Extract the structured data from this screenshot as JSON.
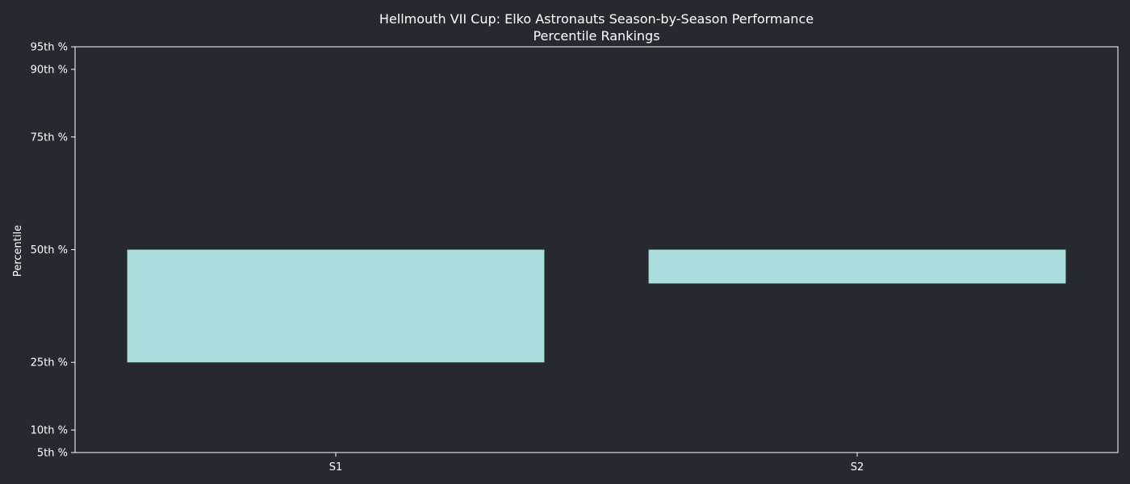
{
  "chart_data": {
    "type": "bar",
    "title": "Hellmouth VII Cup: Elko Astronauts Season-by-Season Performance",
    "subtitle": "Percentile Rankings",
    "xlabel": "",
    "ylabel": "Percentile",
    "ylim": [
      5,
      95
    ],
    "yticks": [
      {
        "value": 5,
        "label": "5th %"
      },
      {
        "value": 10,
        "label": "10th %"
      },
      {
        "value": 25,
        "label": "25th %"
      },
      {
        "value": 50,
        "label": "50th %"
      },
      {
        "value": 75,
        "label": "75th %"
      },
      {
        "value": 90,
        "label": "90th %"
      },
      {
        "value": 95,
        "label": "95th %"
      }
    ],
    "categories": [
      "S1",
      "S2"
    ],
    "bars": [
      {
        "category": "S1",
        "bottom": 25,
        "top": 50
      },
      {
        "category": "S2",
        "bottom": 42.5,
        "top": 50
      }
    ],
    "bar_color": "#a9dedc",
    "grid": false,
    "legend": "none"
  }
}
